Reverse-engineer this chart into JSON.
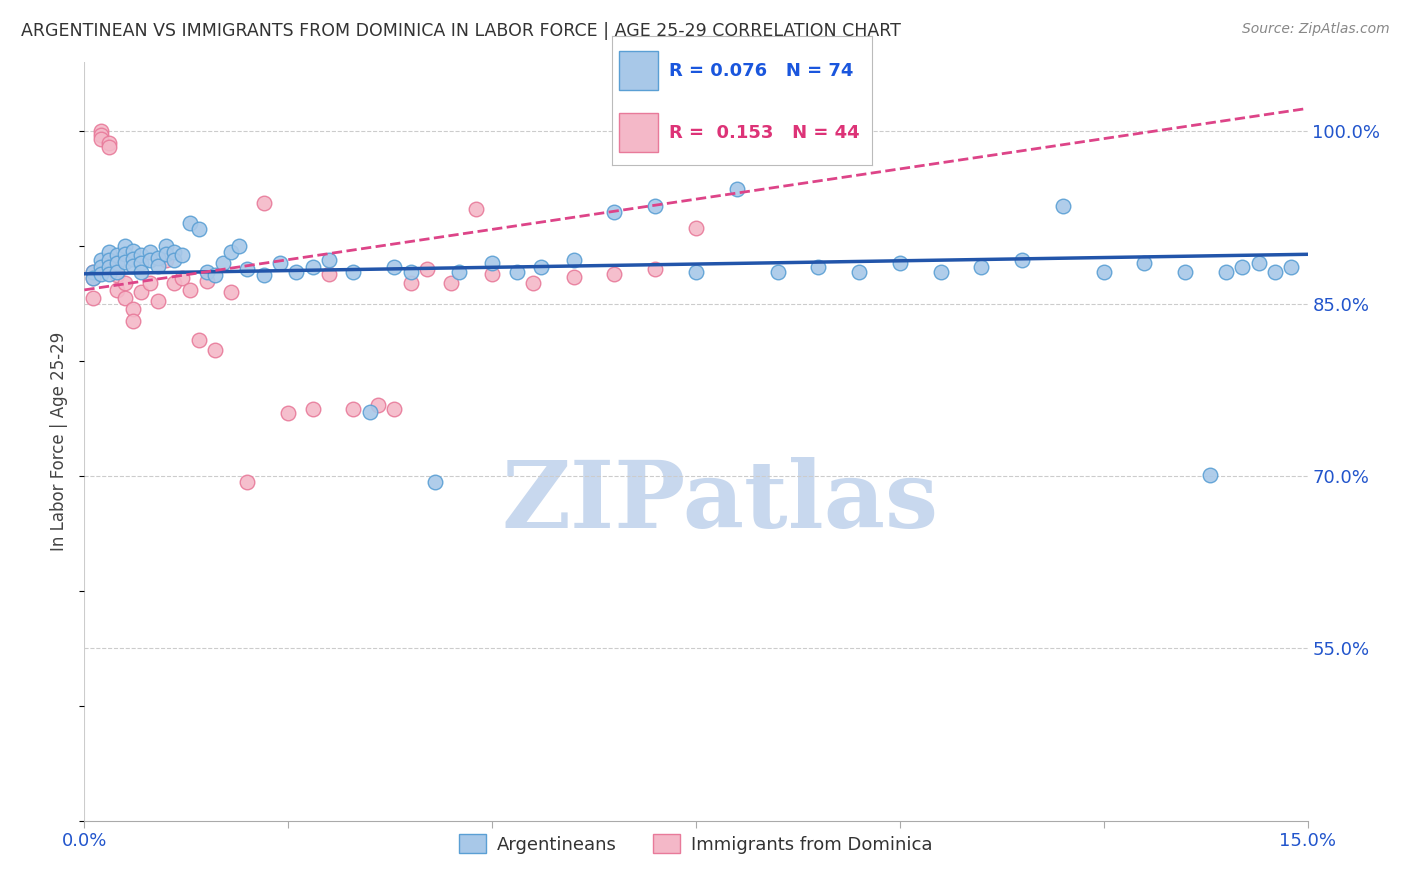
{
  "title": "ARGENTINEAN VS IMMIGRANTS FROM DOMINICA IN LABOR FORCE | AGE 25-29 CORRELATION CHART",
  "source": "Source: ZipAtlas.com",
  "ylabel_label": "In Labor Force | Age 25-29",
  "x_min": 0.0,
  "x_max": 0.15,
  "y_min": 0.4,
  "y_max": 1.06,
  "x_ticks": [
    0.0,
    0.025,
    0.05,
    0.075,
    0.1,
    0.125,
    0.15
  ],
  "x_tick_labels": [
    "0.0%",
    "",
    "",
    "",
    "",
    "",
    "15.0%"
  ],
  "y_ticks": [
    0.55,
    0.7,
    0.85,
    1.0
  ],
  "y_tick_labels": [
    "55.0%",
    "70.0%",
    "85.0%",
    "100.0%"
  ],
  "gridline_y": [
    0.55,
    0.7,
    0.85,
    1.0
  ],
  "blue_color": "#a8c8e8",
  "blue_edge": "#5a9fd4",
  "pink_color": "#f4b8c8",
  "pink_edge": "#e87a9a",
  "trend_blue_color": "#2255aa",
  "trend_pink_color": "#dd4488",
  "legend_blue_R": "0.076",
  "legend_blue_N": "74",
  "legend_pink_R": "0.153",
  "legend_pink_N": "44",
  "blue_R": 0.076,
  "blue_N": 74,
  "pink_R": 0.153,
  "pink_N": 44,
  "blue_scatter_x": [
    0.001,
    0.001,
    0.002,
    0.002,
    0.002,
    0.003,
    0.003,
    0.003,
    0.003,
    0.004,
    0.004,
    0.004,
    0.005,
    0.005,
    0.005,
    0.006,
    0.006,
    0.006,
    0.007,
    0.007,
    0.007,
    0.008,
    0.008,
    0.009,
    0.009,
    0.01,
    0.01,
    0.011,
    0.011,
    0.012,
    0.013,
    0.014,
    0.015,
    0.016,
    0.017,
    0.018,
    0.019,
    0.02,
    0.022,
    0.024,
    0.026,
    0.028,
    0.03,
    0.033,
    0.035,
    0.038,
    0.04,
    0.043,
    0.046,
    0.05,
    0.053,
    0.056,
    0.06,
    0.065,
    0.07,
    0.075,
    0.08,
    0.085,
    0.09,
    0.095,
    0.1,
    0.105,
    0.11,
    0.115,
    0.12,
    0.125,
    0.13,
    0.135,
    0.138,
    0.14,
    0.142,
    0.144,
    0.146,
    0.148
  ],
  "blue_scatter_y": [
    0.878,
    0.872,
    0.888,
    0.882,
    0.876,
    0.895,
    0.888,
    0.882,
    0.876,
    0.892,
    0.885,
    0.878,
    0.9,
    0.893,
    0.886,
    0.896,
    0.889,
    0.883,
    0.892,
    0.885,
    0.878,
    0.895,
    0.888,
    0.89,
    0.883,
    0.9,
    0.893,
    0.895,
    0.888,
    0.892,
    0.92,
    0.915,
    0.878,
    0.875,
    0.885,
    0.895,
    0.9,
    0.88,
    0.875,
    0.885,
    0.878,
    0.882,
    0.888,
    0.878,
    0.756,
    0.882,
    0.878,
    0.695,
    0.878,
    0.885,
    0.878,
    0.882,
    0.888,
    0.93,
    0.935,
    0.878,
    0.95,
    0.878,
    0.882,
    0.878,
    0.885,
    0.878,
    0.882,
    0.888,
    0.935,
    0.878,
    0.885,
    0.878,
    0.701,
    0.878,
    0.882,
    0.885,
    0.878,
    0.882
  ],
  "pink_scatter_x": [
    0.001,
    0.001,
    0.001,
    0.002,
    0.002,
    0.002,
    0.003,
    0.003,
    0.003,
    0.004,
    0.004,
    0.005,
    0.005,
    0.006,
    0.006,
    0.007,
    0.008,
    0.009,
    0.01,
    0.011,
    0.012,
    0.013,
    0.014,
    0.015,
    0.016,
    0.018,
    0.02,
    0.022,
    0.025,
    0.028,
    0.03,
    0.033,
    0.036,
    0.038,
    0.04,
    0.042,
    0.045,
    0.048,
    0.05,
    0.055,
    0.06,
    0.065,
    0.07,
    0.075
  ],
  "pink_scatter_y": [
    0.878,
    0.872,
    0.855,
    1.0,
    0.997,
    0.993,
    0.99,
    0.986,
    0.882,
    0.875,
    0.862,
    0.868,
    0.855,
    0.845,
    0.835,
    0.86,
    0.868,
    0.852,
    0.888,
    0.868,
    0.872,
    0.862,
    0.818,
    0.87,
    0.81,
    0.86,
    0.695,
    0.938,
    0.755,
    0.758,
    0.876,
    0.758,
    0.762,
    0.758,
    0.868,
    0.88,
    0.868,
    0.932,
    0.876,
    0.868,
    0.873,
    0.876,
    0.88,
    0.916
  ],
  "trend_blue_x0": 0.0,
  "trend_blue_x1": 0.15,
  "trend_blue_y0": 0.876,
  "trend_blue_y1": 0.893,
  "trend_pink_x0": 0.0,
  "trend_pink_x1": 0.15,
  "trend_pink_y0": 0.862,
  "trend_pink_y1": 1.02,
  "watermark": "ZIPatlas",
  "watermark_color": "#c8d8ee",
  "bottom_legend_labels": [
    "Argentineans",
    "Immigrants from Dominica"
  ]
}
